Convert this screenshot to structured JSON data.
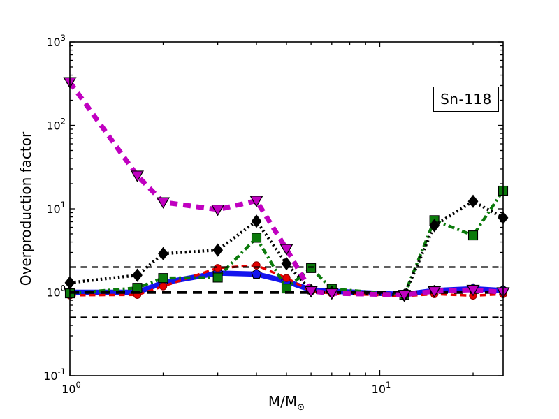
{
  "chart_data": {
    "type": "line",
    "isotope_label": "Sn-118",
    "ylabel": "Overproduction factor",
    "xlabel_main": "M/M",
    "xlabel_sub": "⊙",
    "xscale": "log",
    "yscale": "log",
    "xlim": [
      1,
      25
    ],
    "ylim": [
      0.1,
      1000
    ],
    "grid": false,
    "legend": "none",
    "x_ticks": [
      {
        "value": 1,
        "base": "10",
        "exp": "0"
      },
      {
        "value": 10,
        "base": "10",
        "exp": "1"
      }
    ],
    "y_ticks": [
      {
        "value": 1000,
        "base": "10",
        "exp": "3"
      },
      {
        "value": 100,
        "base": "10",
        "exp": "2"
      },
      {
        "value": 10,
        "base": "10",
        "exp": "1"
      },
      {
        "value": 1,
        "base": "10",
        "exp": "0"
      },
      {
        "value": 0.1,
        "base": "10",
        "exp": "-1"
      }
    ],
    "x": [
      1,
      1.65,
      2,
      3,
      4,
      5,
      6,
      7,
      12,
      15,
      20,
      25
    ],
    "series": [
      {
        "name": "blue-solid-pentagons",
        "color": "#1414ee",
        "marker": "pentagon",
        "line_style": "solid",
        "line_width": 7.5,
        "z": 1,
        "values": [
          1.0,
          1.0,
          1.3,
          1.7,
          1.65,
          1.35,
          1.07,
          1.03,
          0.94,
          1.05,
          1.1,
          1.05
        ]
      },
      {
        "name": "red-dashed-circles",
        "color": "#e60000",
        "marker": "circle",
        "line_style": "dashed",
        "line_width": 3.5,
        "z": 2,
        "values": [
          0.92,
          0.93,
          1.18,
          1.95,
          2.1,
          1.48,
          1.03,
          0.97,
          0.9,
          0.95,
          0.91,
          0.95
        ]
      },
      {
        "name": "green-dashdot-squares",
        "color": "#0b7a0b",
        "marker": "square",
        "line_style": "dashdot",
        "line_width": 4.3,
        "z": 3,
        "values": [
          0.97,
          1.13,
          1.48,
          1.5,
          4.5,
          1.11,
          1.95,
          1.1,
          0.93,
          7.3,
          4.8,
          16.5
        ]
      },
      {
        "name": "black-dotted-diamonds",
        "color": "#000000",
        "marker": "diamond",
        "line_style": "dotted",
        "line_width": 4.3,
        "z": 4,
        "values": [
          1.3,
          1.6,
          2.9,
          3.2,
          7.1,
          2.2,
          1.05,
          1.0,
          0.92,
          6.3,
          12.3,
          7.8
        ]
      },
      {
        "name": "magenta-dashed-triangles",
        "color": "#c000c0",
        "marker": "triangle-down",
        "line_style": "dashed-wide",
        "line_width": 7,
        "z": 6,
        "values": [
          330,
          25,
          12,
          9.8,
          12.5,
          3.3,
          1.03,
          0.97,
          0.93,
          1.03,
          1.07,
          1.0
        ]
      }
    ],
    "reference_lines": [
      {
        "y": 2,
        "style": "thin-dashed",
        "color": "#000000"
      },
      {
        "y": 1,
        "style": "thick-dashed",
        "color": "#000000"
      },
      {
        "y": 0.5,
        "style": "thin-dashed",
        "color": "#000000"
      }
    ]
  }
}
